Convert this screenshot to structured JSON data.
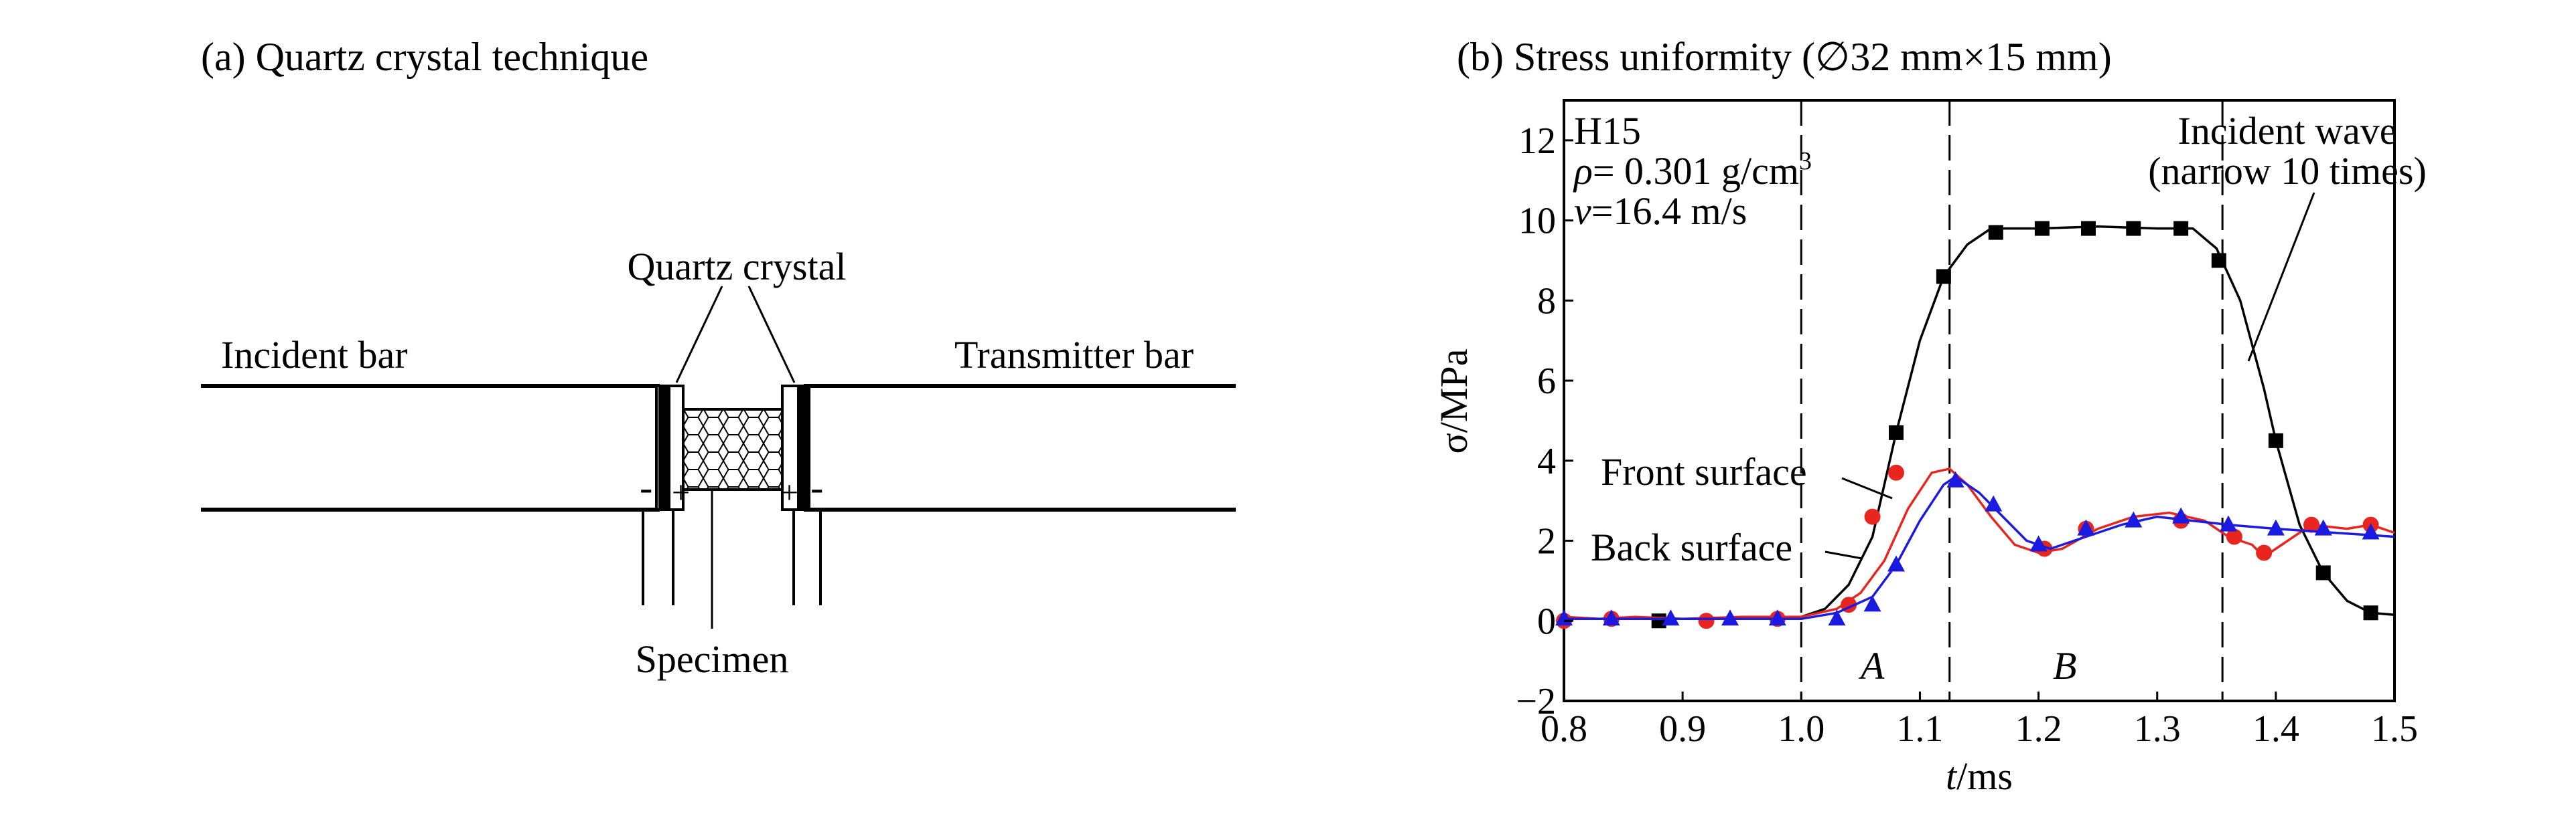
{
  "panel_a": {
    "title": "(a) Quartz crystal technique",
    "incident_label": "Incident bar",
    "transmitter_label": "Transmitter bar",
    "crystal_label": "Quartz crystal",
    "specimen_label": "Specimen",
    "minus": "-",
    "plus": "+"
  },
  "panel_b": {
    "title": "(b) Stress uniformity (∅32 mm×15 mm)",
    "info_line1": "H15",
    "info_rho_symbol": "ρ",
    "info_rho_value": "= 0.301 g/cm",
    "info_rho_exp": "3",
    "info_v_symbol": "v",
    "info_v_value": "=16.4 m/s",
    "incident_line1": "Incident wave",
    "incident_line2": "(narrow 10 times)",
    "front_label": "Front surface",
    "back_label": "Back surface",
    "region_a": "A",
    "region_b": "B",
    "colors": {
      "incident": "#000000",
      "front": "#e8261f",
      "back": "#1a1ae0"
    }
  },
  "chart_data": {
    "type": "line",
    "xlabel_italic": "t",
    "xlabel_unit": "/ms",
    "ylabel": "σ/MPa",
    "xlim": [
      0.8,
      1.5
    ],
    "ylim": [
      -2,
      13
    ],
    "xticks": [
      "0.8",
      "0.9",
      "1.0",
      "1.1",
      "1.2",
      "1.3",
      "1.4",
      "1.5"
    ],
    "yticks": [
      "−2",
      "0",
      "2",
      "4",
      "6",
      "8",
      "10",
      "12"
    ],
    "vlines": [
      1.0,
      1.125,
      1.355
    ],
    "series": [
      {
        "name": "Incident wave",
        "marker": "square",
        "points": [
          [
            0.8,
            0.05
          ],
          [
            0.9,
            0.05
          ],
          [
            0.95,
            0.05
          ],
          [
            0.99,
            0.05
          ],
          [
            1.0,
            0.1
          ],
          [
            1.02,
            0.3
          ],
          [
            1.04,
            0.9
          ],
          [
            1.06,
            2.1
          ],
          [
            1.08,
            4.7
          ],
          [
            1.1,
            7.0
          ],
          [
            1.12,
            8.6
          ],
          [
            1.14,
            9.4
          ],
          [
            1.16,
            9.8
          ],
          [
            1.2,
            9.8
          ],
          [
            1.25,
            9.85
          ],
          [
            1.3,
            9.8
          ],
          [
            1.33,
            9.8
          ],
          [
            1.35,
            9.3
          ],
          [
            1.37,
            8.0
          ],
          [
            1.39,
            5.8
          ],
          [
            1.4,
            4.5
          ],
          [
            1.42,
            2.4
          ],
          [
            1.44,
            1.2
          ],
          [
            1.46,
            0.5
          ],
          [
            1.48,
            0.2
          ],
          [
            1.5,
            0.15
          ]
        ],
        "markers": [
          [
            0.88,
            0.0
          ],
          [
            1.08,
            4.7
          ],
          [
            1.12,
            8.6
          ],
          [
            1.164,
            9.7
          ],
          [
            1.203,
            9.8
          ],
          [
            1.242,
            9.8
          ],
          [
            1.28,
            9.8
          ],
          [
            1.32,
            9.8
          ],
          [
            1.352,
            9.0
          ],
          [
            1.4,
            4.5
          ],
          [
            1.44,
            1.2
          ],
          [
            1.48,
            0.2
          ]
        ]
      },
      {
        "name": "Front surface",
        "marker": "circle",
        "points": [
          [
            0.8,
            0.1
          ],
          [
            0.83,
            0.05
          ],
          [
            0.86,
            0.1
          ],
          [
            0.9,
            0.05
          ],
          [
            0.95,
            0.1
          ],
          [
            1.0,
            0.1
          ],
          [
            1.03,
            0.3
          ],
          [
            1.05,
            0.7
          ],
          [
            1.07,
            1.5
          ],
          [
            1.09,
            2.8
          ],
          [
            1.11,
            3.7
          ],
          [
            1.125,
            3.8
          ],
          [
            1.14,
            3.4
          ],
          [
            1.16,
            2.6
          ],
          [
            1.18,
            1.9
          ],
          [
            1.2,
            1.7
          ],
          [
            1.22,
            1.8
          ],
          [
            1.25,
            2.3
          ],
          [
            1.28,
            2.6
          ],
          [
            1.31,
            2.7
          ],
          [
            1.34,
            2.5
          ],
          [
            1.36,
            2.1
          ],
          [
            1.38,
            1.9
          ],
          [
            1.39,
            1.6
          ],
          [
            1.41,
            2.0
          ],
          [
            1.43,
            2.4
          ],
          [
            1.46,
            2.3
          ],
          [
            1.48,
            2.4
          ],
          [
            1.5,
            2.2
          ]
        ],
        "markers": [
          [
            0.8,
            0.0
          ],
          [
            0.84,
            0.05
          ],
          [
            0.92,
            0.0
          ],
          [
            0.98,
            0.05
          ],
          [
            1.04,
            0.4
          ],
          [
            1.06,
            2.6
          ],
          [
            1.08,
            3.7
          ],
          [
            1.205,
            1.8
          ],
          [
            1.24,
            2.3
          ],
          [
            1.32,
            2.5
          ],
          [
            1.365,
            2.1
          ],
          [
            1.39,
            1.7
          ],
          [
            1.43,
            2.4
          ],
          [
            1.48,
            2.4
          ]
        ]
      },
      {
        "name": "Back surface",
        "marker": "triangle",
        "points": [
          [
            0.8,
            0.05
          ],
          [
            0.9,
            0.05
          ],
          [
            1.0,
            0.05
          ],
          [
            1.03,
            0.2
          ],
          [
            1.06,
            0.6
          ],
          [
            1.08,
            1.4
          ],
          [
            1.1,
            2.5
          ],
          [
            1.12,
            3.4
          ],
          [
            1.13,
            3.6
          ],
          [
            1.15,
            3.2
          ],
          [
            1.17,
            2.6
          ],
          [
            1.19,
            2.0
          ],
          [
            1.21,
            1.8
          ],
          [
            1.24,
            2.1
          ],
          [
            1.27,
            2.4
          ],
          [
            1.3,
            2.6
          ],
          [
            1.33,
            2.5
          ],
          [
            1.36,
            2.4
          ],
          [
            1.4,
            2.3
          ],
          [
            1.45,
            2.2
          ],
          [
            1.5,
            2.1
          ]
        ],
        "markers": [
          [
            0.8,
            0.05
          ],
          [
            0.84,
            0.05
          ],
          [
            0.89,
            0.05
          ],
          [
            0.94,
            0.05
          ],
          [
            0.98,
            0.05
          ],
          [
            1.03,
            0.05
          ],
          [
            1.06,
            0.4
          ],
          [
            1.08,
            1.4
          ],
          [
            1.13,
            3.5
          ],
          [
            1.162,
            2.9
          ],
          [
            1.2,
            1.9
          ],
          [
            1.24,
            2.3
          ],
          [
            1.28,
            2.5
          ],
          [
            1.32,
            2.6
          ],
          [
            1.36,
            2.4
          ],
          [
            1.4,
            2.3
          ],
          [
            1.44,
            2.3
          ],
          [
            1.48,
            2.2
          ]
        ]
      }
    ]
  }
}
